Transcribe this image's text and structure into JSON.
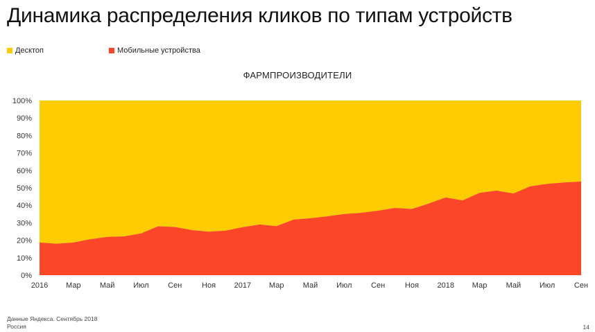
{
  "slide": {
    "title": "Динамика распределения кликов по типам устройств",
    "footer_line1": "Данные Яндекса. Сентябрь 2018",
    "footer_line2": "Россия",
    "page_number": "14"
  },
  "chart_data": {
    "type": "area",
    "stacked": true,
    "percent": true,
    "title": "ФАРМПРОИЗВОДИТЕЛИ",
    "xlabel": "",
    "ylabel": "",
    "ylim": [
      0,
      100
    ],
    "y_ticks": [
      "0%",
      "10%",
      "20%",
      "30%",
      "40%",
      "50%",
      "60%",
      "70%",
      "80%",
      "90%",
      "100%"
    ],
    "x_tick_labels": [
      {
        "month": 0,
        "label": "2016"
      },
      {
        "month": 2,
        "label": "Мар"
      },
      {
        "month": 4,
        "label": "Май"
      },
      {
        "month": 6,
        "label": "Июл"
      },
      {
        "month": 8,
        "label": "Сен"
      },
      {
        "month": 10,
        "label": "Ноя"
      },
      {
        "month": 12,
        "label": "2017"
      },
      {
        "month": 14,
        "label": "Мар"
      },
      {
        "month": 16,
        "label": "Май"
      },
      {
        "month": 18,
        "label": "Июл"
      },
      {
        "month": 20,
        "label": "Сен"
      },
      {
        "month": 22,
        "label": "Ноя"
      },
      {
        "month": 24,
        "label": "2018"
      },
      {
        "month": 26,
        "label": "Мар"
      },
      {
        "month": 28,
        "label": "Май"
      },
      {
        "month": 30,
        "label": "Июл"
      },
      {
        "month": 32,
        "label": "Сен"
      }
    ],
    "x": [
      "2016-01",
      "2016-02",
      "2016-03",
      "2016-04",
      "2016-05",
      "2016-06",
      "2016-07",
      "2016-08",
      "2016-09",
      "2016-10",
      "2016-11",
      "2016-12",
      "2017-01",
      "2017-02",
      "2017-03",
      "2017-04",
      "2017-05",
      "2017-06",
      "2017-07",
      "2017-08",
      "2017-09",
      "2017-10",
      "2017-11",
      "2017-12",
      "2018-01",
      "2018-02",
      "2018-03",
      "2018-04",
      "2018-05",
      "2018-06",
      "2018-07",
      "2018-08",
      "2018-09"
    ],
    "series": [
      {
        "name": "Мобильные устройства",
        "color": "#fc4628",
        "values": [
          18.7,
          18.0,
          18.7,
          20.6,
          21.9,
          22.2,
          23.9,
          28.0,
          27.6,
          25.8,
          24.9,
          25.5,
          27.5,
          29.0,
          28.1,
          31.8,
          32.6,
          33.7,
          35.0,
          35.7,
          36.9,
          38.5,
          37.9,
          41.0,
          44.5,
          42.8,
          47.1,
          48.4,
          46.8,
          50.9,
          52.3,
          53.1,
          53.6
        ]
      },
      {
        "name": "Десктоп",
        "color": "#ffcc00",
        "values": [
          81.3,
          82.0,
          81.3,
          79.4,
          78.1,
          77.8,
          76.1,
          72.0,
          72.4,
          74.2,
          75.1,
          74.5,
          72.5,
          71.0,
          71.9,
          68.2,
          67.4,
          66.3,
          65.0,
          64.3,
          63.1,
          61.5,
          62.1,
          59.0,
          55.5,
          57.2,
          52.9,
          51.6,
          53.2,
          49.1,
          47.7,
          46.9,
          46.4
        ]
      }
    ],
    "legend": {
      "placement": "top-left",
      "items": [
        {
          "label": "Десктоп",
          "color": "#ffcc00"
        },
        {
          "label": "Мобильные устройства",
          "color": "#fc4628"
        }
      ]
    },
    "grid": false
  }
}
